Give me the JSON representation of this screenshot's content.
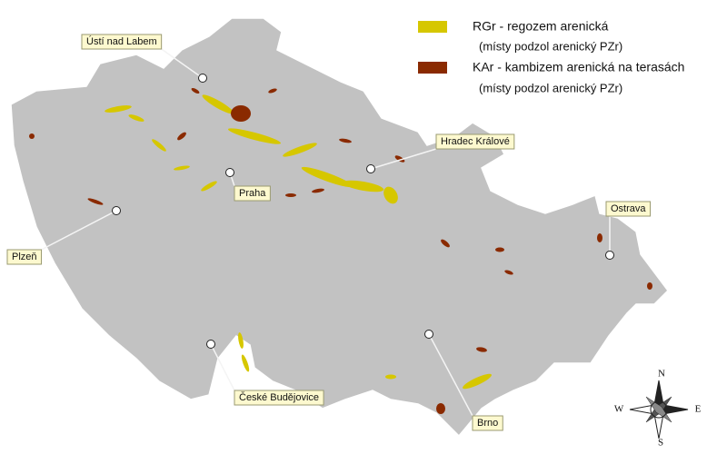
{
  "legend": {
    "items": [
      {
        "label": "RGr - regozem arenická",
        "sublabel": "(místy podzol arenický PZr)",
        "color": "#d6c700"
      },
      {
        "label": "KAr - kambizem arenická na terasách",
        "sublabel": "(místy podzol arenický PZr)",
        "color": "#8a2a00"
      }
    ]
  },
  "cities": [
    {
      "label": "Ústí nad Labem"
    },
    {
      "label": "Praha"
    },
    {
      "label": "Hradec Králové"
    },
    {
      "label": "Ostrava"
    },
    {
      "label": "Plzeň"
    },
    {
      "label": "České Budějovice"
    },
    {
      "label": "Brno"
    }
  ],
  "compass": {
    "north": "N",
    "east": "E",
    "south": "S",
    "west": "W"
  }
}
